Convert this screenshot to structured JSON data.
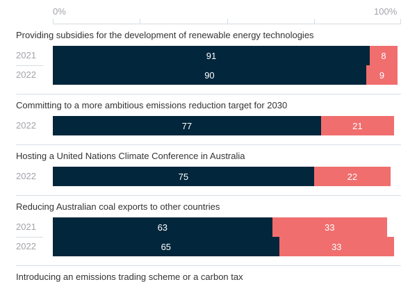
{
  "chart_data": {
    "type": "bar",
    "orientation": "horizontal-stacked",
    "axis": {
      "min_label": "0%",
      "max_label": "100%",
      "range": [
        0,
        100
      ],
      "ticks": [
        0,
        25,
        50,
        75,
        100
      ]
    },
    "colors": {
      "support": "#02263c",
      "oppose": "#f06e6e"
    },
    "groups": [
      {
        "title": "Providing subsidies for the development of renewable energy technologies",
        "rows": [
          {
            "year": "2021",
            "support": 91,
            "oppose": 8
          },
          {
            "year": "2022",
            "support": 90,
            "oppose": 9
          }
        ]
      },
      {
        "title": "Committing to a more ambitious emissions reduction target for 2030",
        "rows": [
          {
            "year": "2022",
            "support": 77,
            "oppose": 21
          }
        ]
      },
      {
        "title": "Hosting a United Nations Climate Conference in Australia",
        "rows": [
          {
            "year": "2022",
            "support": 75,
            "oppose": 22
          }
        ]
      },
      {
        "title": "Reducing Australian coal exports to other countries",
        "rows": [
          {
            "year": "2021",
            "support": 63,
            "oppose": 33
          },
          {
            "year": "2022",
            "support": 65,
            "oppose": 33
          }
        ]
      },
      {
        "title": "Introducing an emissions trading scheme or a carbon tax",
        "rows": []
      }
    ]
  }
}
